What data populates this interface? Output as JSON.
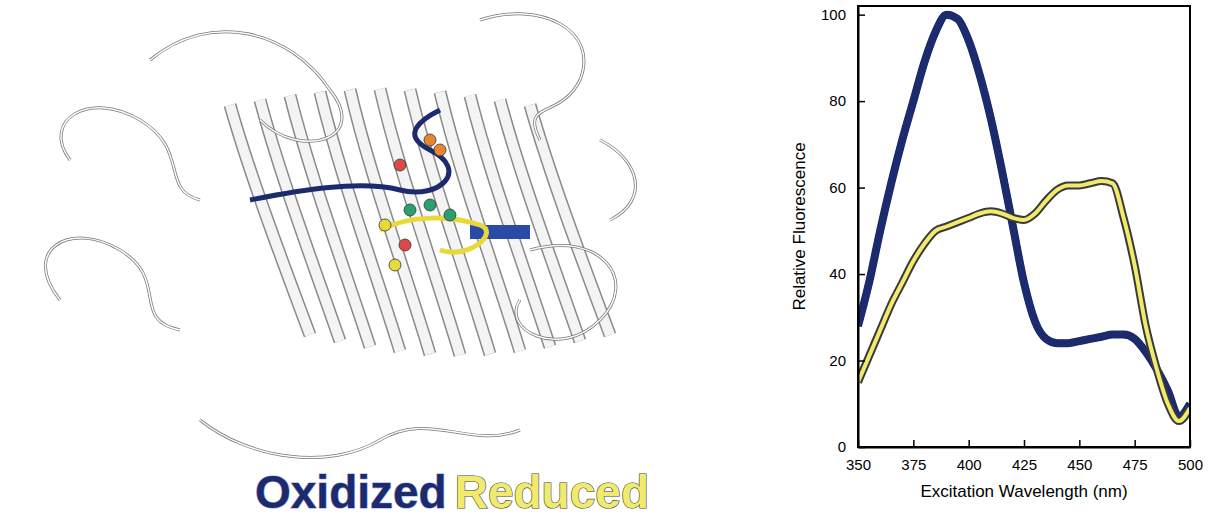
{
  "chart_data": {
    "type": "line",
    "x_label": "Excitation Wavelength (nm)",
    "y_label": "Relative Fluorescence",
    "x": [
      350,
      355,
      360,
      365,
      370,
      375,
      380,
      385,
      390,
      395,
      400,
      405,
      410,
      415,
      420,
      425,
      430,
      435,
      440,
      445,
      450,
      455,
      460,
      465,
      470,
      475,
      480,
      485,
      490,
      495,
      500
    ],
    "series": [
      {
        "name": "Oxidized",
        "color": "#1c2a6e",
        "values": [
          28,
          38,
          50,
          61,
          71,
          80,
          89,
          96,
          100,
          99,
          94,
          86,
          76,
          64,
          51,
          38,
          29,
          25,
          24,
          24,
          24.5,
          25,
          25.5,
          26,
          26,
          25,
          22,
          18,
          13,
          7,
          10
        ]
      },
      {
        "name": "Reduced",
        "color": "#f2ea6c",
        "values": [
          15,
          21,
          27,
          33,
          38,
          43,
          47,
          50,
          51,
          52,
          53,
          54,
          54.5,
          54,
          53,
          52.5,
          54,
          57,
          59.5,
          60.5,
          60.5,
          61,
          61.5,
          61,
          53,
          42,
          28,
          18,
          10,
          6,
          9
        ]
      }
    ],
    "xlim": [
      350,
      500
    ],
    "ylim": [
      0,
      102
    ],
    "xticks": [
      350,
      375,
      400,
      425,
      450,
      475,
      500
    ],
    "yticks": [
      0,
      20,
      40,
      60,
      80,
      100
    ],
    "legend": "lower left"
  }
}
